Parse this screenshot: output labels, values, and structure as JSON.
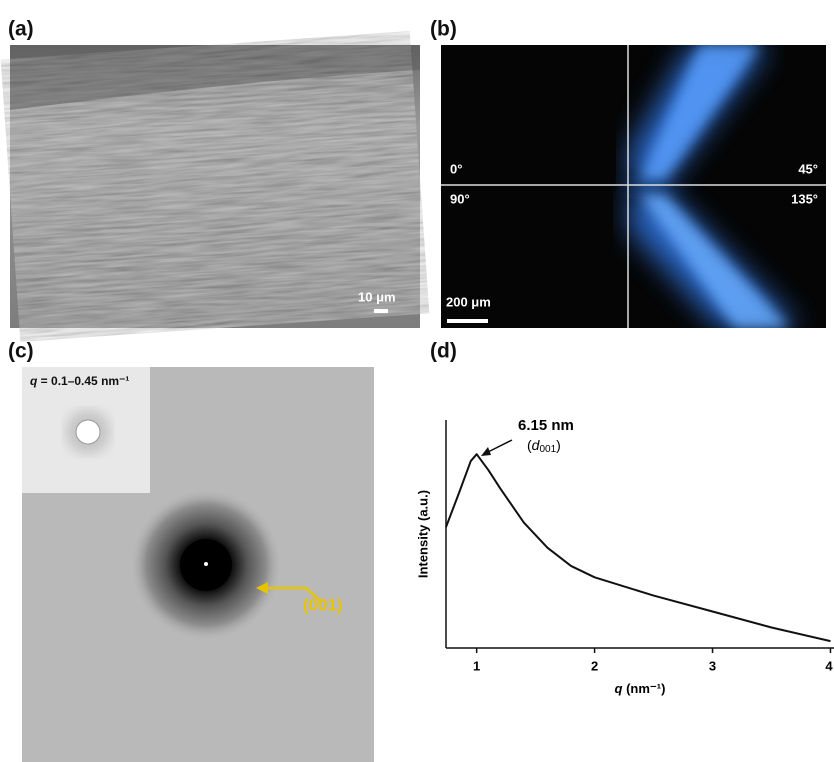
{
  "panels": {
    "a": {
      "label": "(a)",
      "scale_bar": "10 μm"
    },
    "b": {
      "label": "(b)",
      "angles": [
        "0°",
        "45°",
        "90°",
        "135°"
      ],
      "scale_bar": "200 μm"
    },
    "c": {
      "label": "(c)",
      "inset_symbol": "q",
      "inset_range": " = 0.1–0.45 nm⁻¹",
      "peak_label": "(001)"
    },
    "d": {
      "label": "(d)"
    }
  },
  "chart_data": {
    "type": "line",
    "ylabel": "Intensity (a.u.)",
    "xlabel_symbol": "q",
    "xlabel_unit": " (nm⁻¹)",
    "annotation": "6.15 nm",
    "annotation_sub": {
      "open": "(",
      "symbol": "d",
      "index": "001",
      "close": ")"
    },
    "x": [
      0.74,
      0.85,
      0.95,
      1.0,
      1.1,
      1.2,
      1.4,
      1.6,
      1.8,
      2.0,
      2.5,
      3.0,
      3.5,
      4.0
    ],
    "series": [
      {
        "color": "#111111",
        "values": [
          0.53,
          0.68,
          0.82,
          0.85,
          0.78,
          0.7,
          0.55,
          0.44,
          0.36,
          0.31,
          0.23,
          0.16,
          0.09,
          0.03
        ]
      }
    ],
    "xlim": [
      0.74,
      4.03
    ],
    "ylim": [
      0,
      1
    ],
    "xticks": [
      1,
      2,
      3,
      4
    ]
  }
}
